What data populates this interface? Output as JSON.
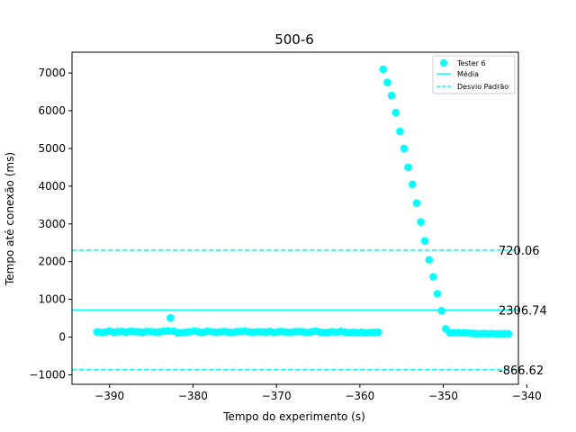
{
  "chart_data": {
    "type": "scatter",
    "title": "500-6",
    "xlabel": "Tempo do experimento (s)",
    "ylabel": "Tempo até conexão (ms)",
    "xlim": [
      -394.5,
      -341.0
    ],
    "ylim": [
      -1250,
      7550
    ],
    "xticks": [
      -390,
      -380,
      -370,
      -360,
      -350,
      -340
    ],
    "xtick_labels": [
      "−390",
      "−380",
      "−370",
      "−360",
      "−350",
      "−340"
    ],
    "yticks": [
      -1000,
      0,
      1000,
      2000,
      3000,
      4000,
      5000,
      6000,
      7000
    ],
    "ytick_labels": [
      "−1000",
      "0",
      "1000",
      "2000",
      "3000",
      "4000",
      "5000",
      "6000",
      "7000"
    ],
    "grid": false,
    "legend_position": "top-right",
    "color": "#00ffff",
    "series": [
      {
        "name": "Tester 6",
        "kind": "scatter",
        "x": [
          -391.5,
          -391.0,
          -390.5,
          -390.0,
          -389.5,
          -389.0,
          -388.5,
          -388.0,
          -387.5,
          -387.0,
          -386.5,
          -386.0,
          -385.5,
          -385.0,
          -384.5,
          -384.0,
          -383.5,
          -383.0,
          -382.7,
          -382.3,
          -381.8,
          -381.3,
          -380.8,
          -380.3,
          -379.8,
          -379.3,
          -378.8,
          -378.3,
          -377.8,
          -377.3,
          -376.8,
          -376.3,
          -375.8,
          -375.3,
          -374.8,
          -374.3,
          -373.8,
          -373.3,
          -372.8,
          -372.3,
          -371.8,
          -371.3,
          -370.8,
          -370.3,
          -369.8,
          -369.3,
          -368.8,
          -368.3,
          -367.8,
          -367.3,
          -366.8,
          -366.3,
          -365.8,
          -365.3,
          -364.8,
          -364.3,
          -363.8,
          -363.3,
          -362.8,
          -362.3,
          -361.8,
          -361.3,
          -360.8,
          -360.3,
          -359.8,
          -359.3,
          -358.8,
          -358.3,
          -357.8,
          -357.2,
          -356.7,
          -356.2,
          -355.7,
          -355.2,
          -354.7,
          -354.2,
          -353.7,
          -353.2,
          -352.7,
          -352.2,
          -351.7,
          -351.2,
          -350.7,
          -350.2,
          -349.7,
          -349.2,
          -348.7,
          -348.2,
          -347.7,
          -347.2,
          -346.7,
          -346.2,
          -345.7,
          -345.2,
          -344.7,
          -344.2,
          -343.7,
          -343.2,
          -342.7,
          -342.2
        ],
        "y": [
          140,
          125,
          135,
          160,
          130,
          145,
          150,
          135,
          155,
          145,
          140,
          130,
          150,
          145,
          135,
          140,
          155,
          165,
          510,
          160,
          110,
          120,
          135,
          145,
          160,
          140,
          125,
          155,
          145,
          130,
          140,
          150,
          135,
          125,
          145,
          150,
          155,
          140,
          130,
          145,
          140,
          135,
          150,
          125,
          145,
          150,
          135,
          130,
          145,
          150,
          140,
          125,
          140,
          160,
          135,
          120,
          125,
          145,
          130,
          150,
          135,
          120,
          130,
          120,
          125,
          115,
          120,
          125,
          130,
          7100,
          6750,
          6400,
          5950,
          5450,
          5000,
          4500,
          4050,
          3550,
          3050,
          2550,
          2050,
          1600,
          1150,
          700,
          220,
          110,
          115,
          120,
          110,
          115,
          100,
          95,
          90,
          95,
          90,
          95,
          85,
          90,
          90,
          90
        ]
      },
      {
        "name": "Média",
        "kind": "hline",
        "value": 720.06,
        "style": "solid"
      },
      {
        "name": "Desvio Padrão",
        "kind": "hline",
        "value": 2306.74,
        "style": "dashed"
      },
      {
        "name": "Desvio Padrão",
        "kind": "hline",
        "value": -866.62,
        "style": "dashed"
      }
    ],
    "annotations": [
      "2306.74",
      "720.06",
      "-866.62"
    ]
  }
}
